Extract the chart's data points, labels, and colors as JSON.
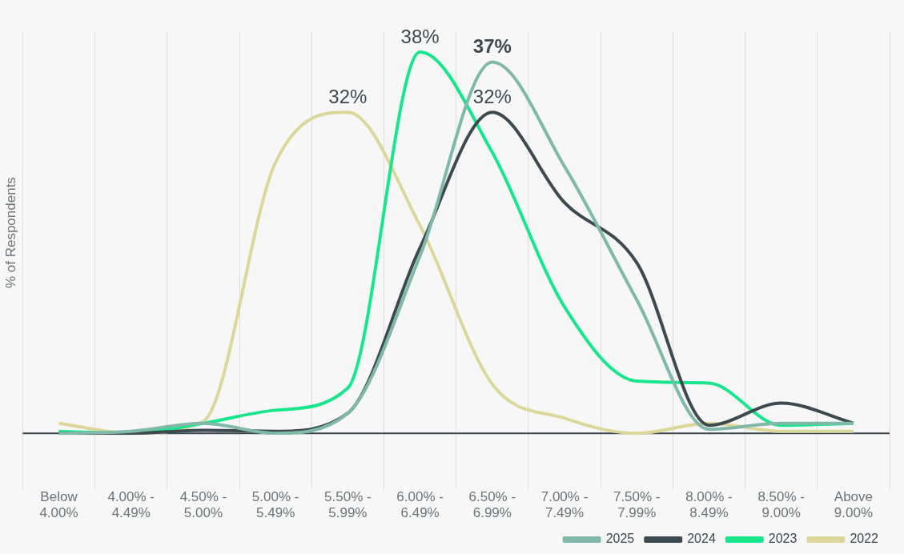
{
  "chart_data": {
    "type": "line",
    "ylabel": "% of Respondents",
    "categories": [
      "Below 4.00%",
      "4.00% - 4.49%",
      "4.50% - 5.00%",
      "5.00% - 5.49%",
      "5.50% - 5.99%",
      "6.00% - 6.49%",
      "6.50% - 6.99%",
      "7.00% - 7.49%",
      "7.50% - 7.99%",
      "8.00% - 8.49%",
      "8.50% - 9.00%",
      "Above 9.00%"
    ],
    "series": [
      {
        "name": "2025",
        "color": "#80b9a9",
        "values": [
          0,
          0.2,
          1,
          0,
          2,
          17.7,
          37,
          26.6,
          13.3,
          0.4,
          1,
          1
        ],
        "value_labels": [
          null,
          null,
          null,
          null,
          null,
          null,
          "37%",
          null,
          null,
          null,
          null,
          null
        ]
      },
      {
        "name": "2024",
        "color": "#3d4a4f",
        "values": [
          0,
          0,
          0.3,
          0.2,
          2,
          18.5,
          32,
          23,
          17,
          0.8,
          3,
          1
        ],
        "value_labels": [
          null,
          null,
          null,
          null,
          null,
          null,
          "32%",
          null,
          null,
          null,
          null,
          null
        ]
      },
      {
        "name": "2023",
        "color": "#19e68c",
        "values": [
          0.2,
          0,
          1,
          2.3,
          4.5,
          38,
          28,
          12.6,
          5.2,
          5,
          0.8,
          1
        ],
        "value_labels": [
          null,
          null,
          null,
          null,
          null,
          "38%",
          null,
          null,
          null,
          null,
          null,
          null
        ]
      },
      {
        "name": "2022",
        "color": "#dcd89c",
        "values": [
          1,
          0,
          1.2,
          27,
          32,
          20.7,
          4.9,
          1.5,
          0,
          1,
          0.2,
          0.2
        ],
        "value_labels": [
          null,
          null,
          null,
          null,
          "32%",
          null,
          null,
          null,
          null,
          null,
          null,
          null
        ]
      }
    ],
    "grid": "x",
    "legend": "bottom right",
    "marker": "none",
    "line_style": "solid"
  }
}
